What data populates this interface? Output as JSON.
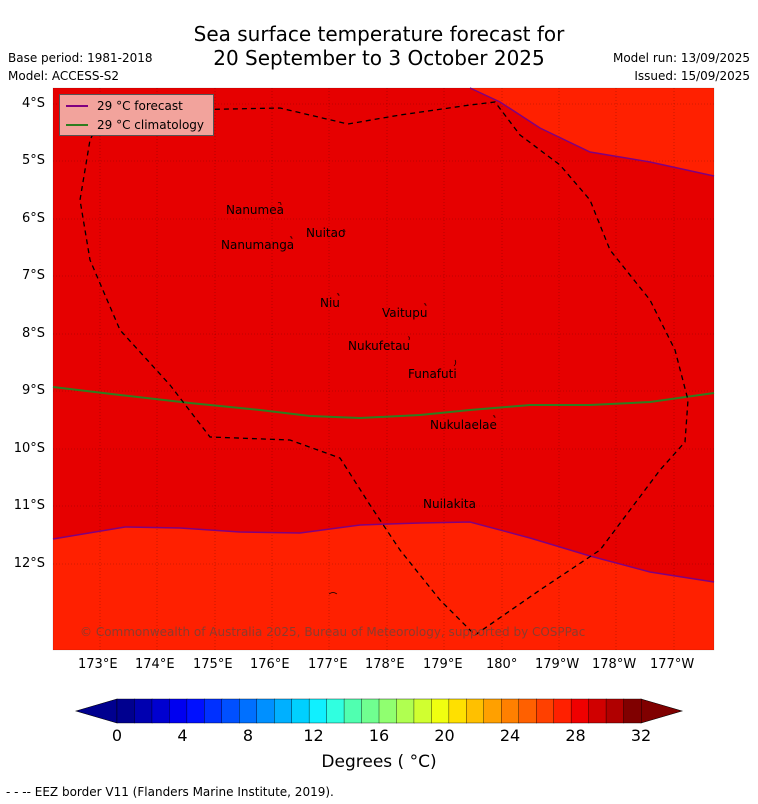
{
  "title_line1": "Sea surface temperature forecast for",
  "title_line2": "20 September to 3 October 2025",
  "base_period": "Base period: 1981-2018",
  "model": "Model: ACCESS-S2",
  "model_run": "Model run: 13/09/2025",
  "issued": "Issued: 15/09/2025",
  "legend": {
    "forecast_label": "29 °C  forecast",
    "forecast_color": "#800080",
    "climatology_label": "29 °C  climatology",
    "climatology_color": "#2e7d1f"
  },
  "lat_labels": [
    "4°S",
    "5°S",
    "6°S",
    "7°S",
    "8°S",
    "9°S",
    "10°S",
    "11°S",
    "12°S"
  ],
  "lon_labels": [
    "173°E",
    "174°E",
    "175°E",
    "176°E",
    "177°E",
    "178°E",
    "179°E",
    "180°",
    "179°W",
    "178°W",
    "177°W"
  ],
  "places": [
    {
      "name": "Nanumea"
    },
    {
      "name": "Nuitao"
    },
    {
      "name": "Nanumanga"
    },
    {
      "name": "Niu"
    },
    {
      "name": "Vaitupu"
    },
    {
      "name": "Nukufetau"
    },
    {
      "name": "Funafuti"
    },
    {
      "name": "Nukulaelae"
    },
    {
      "name": "Nuilakita"
    }
  ],
  "copyright": "© Commonwealth of Australia 2025, Bureau of Meteorology, supported by COSPPac",
  "colorbar": {
    "ticks": [
      "0",
      "4",
      "8",
      "12",
      "16",
      "20",
      "24",
      "28",
      "32"
    ],
    "label": "Degrees ( °C)",
    "min": 0,
    "max": 32,
    "colors": [
      "#00008f",
      "#0000b0",
      "#0000d0",
      "#0000f0",
      "#0010ff",
      "#0030ff",
      "#0050ff",
      "#0070ff",
      "#0090ff",
      "#00b0ff",
      "#00d0ff",
      "#10f0ff",
      "#30ffe0",
      "#50ffb0",
      "#70ff90",
      "#90ff70",
      "#b0ff50",
      "#d0ff30",
      "#f0ff10",
      "#ffe000",
      "#ffc000",
      "#ffa000",
      "#ff8000",
      "#ff6000",
      "#ff4000",
      "#ff2000",
      "#f00000",
      "#d00000",
      "#b00000",
      "#800000"
    ],
    "under_color": "#00008f",
    "over_color": "#800000"
  },
  "footnote": "- -  -- EEZ border V11 (Flanders Marine Institute, 2019).",
  "map_colors": {
    "warm_29": "#e60000",
    "warm_28": "#ff2000"
  }
}
